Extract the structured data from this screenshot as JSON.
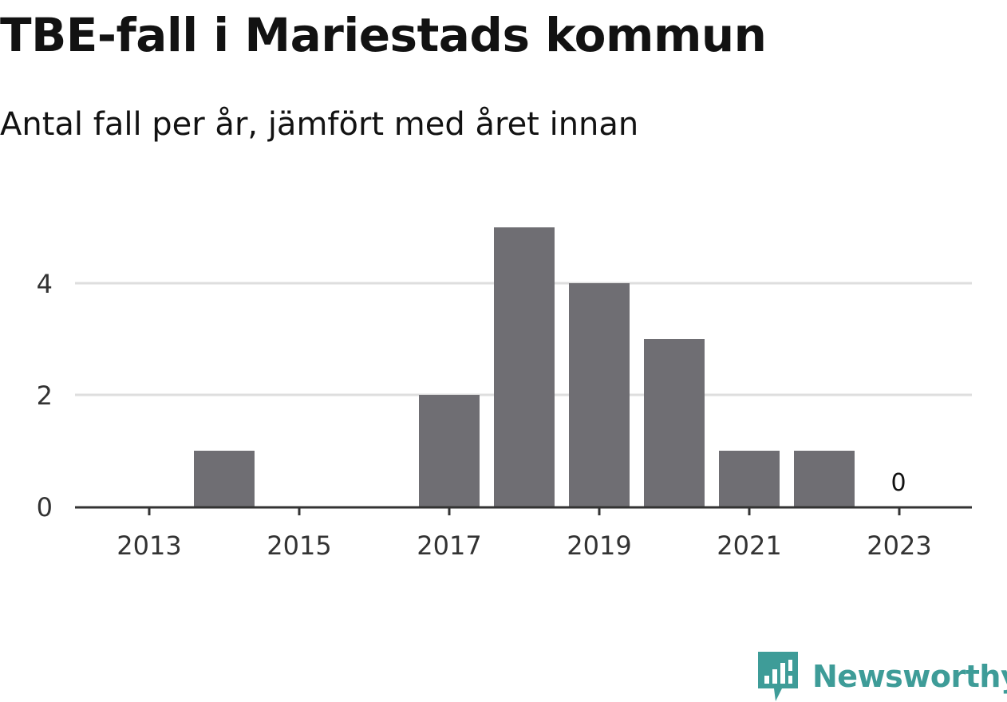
{
  "title": "TBE-fall i Mariestads kommun",
  "subtitle": "Antal fall per år, jämfört med året innan",
  "brand": {
    "name": "Newsworthy",
    "icon": "newsworthy-logo-icon",
    "color": "#3e9c98"
  },
  "colors": {
    "bar": "#6f6e73",
    "grid": "#dedede",
    "axis": "#333333",
    "text": "#121212"
  },
  "chart_data": {
    "type": "bar",
    "categories": [
      "2013",
      "2014",
      "2015",
      "2016",
      "2017",
      "2018",
      "2019",
      "2020",
      "2021",
      "2022",
      "2023"
    ],
    "values": [
      0,
      1,
      0,
      0,
      2,
      5,
      4,
      3,
      1,
      1,
      0
    ],
    "x_tick_labels": [
      "2013",
      "2015",
      "2017",
      "2019",
      "2021",
      "2023"
    ],
    "y_ticks": [
      0,
      2,
      4
    ],
    "ylim": [
      0,
      5
    ],
    "grid": true,
    "legend": "none",
    "value_labels": [
      {
        "category": "2023",
        "text": "0"
      }
    ]
  }
}
